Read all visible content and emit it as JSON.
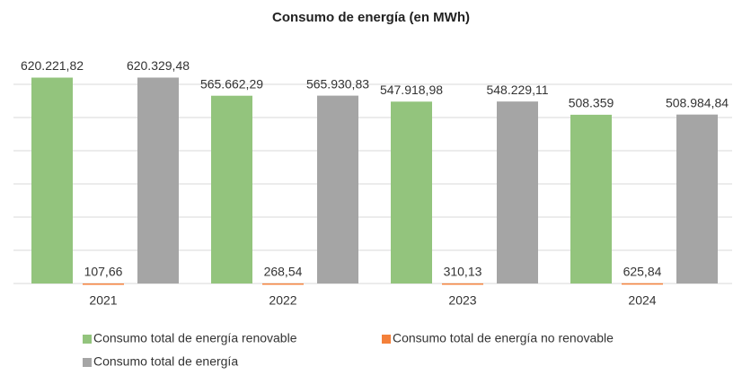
{
  "chart_data": {
    "type": "bar",
    "title": "Consumo de energía (en MWh)",
    "categories": [
      "2021",
      "2022",
      "2023",
      "2024"
    ],
    "series": [
      {
        "name": "Consumo total de energía renovable",
        "color": "#93c47d",
        "values": [
          620221.82,
          565662.29,
          547918.98,
          508359
        ],
        "value_labels": [
          "620.221,82",
          "565.662,29",
          "547.918,98",
          "508.359"
        ]
      },
      {
        "name": "Consumo total de energía no renovable",
        "color": "#f4803a",
        "values": [
          107.66,
          268.54,
          310.13,
          625.84
        ],
        "value_labels": [
          "107,66",
          "268,54",
          "310,13",
          "625,84"
        ]
      },
      {
        "name": "Consumo total de energía",
        "color": "#a5a5a5",
        "values": [
          620329.48,
          565930.83,
          548229.11,
          508984.84
        ],
        "value_labels": [
          "620.329,48",
          "565.930,83",
          "548.229,11",
          "508.984,84"
        ]
      }
    ],
    "ylim": [
      0,
      700000
    ],
    "yticks": [
      0,
      100000,
      200000,
      300000,
      400000,
      500000,
      600000
    ],
    "grid": true
  }
}
